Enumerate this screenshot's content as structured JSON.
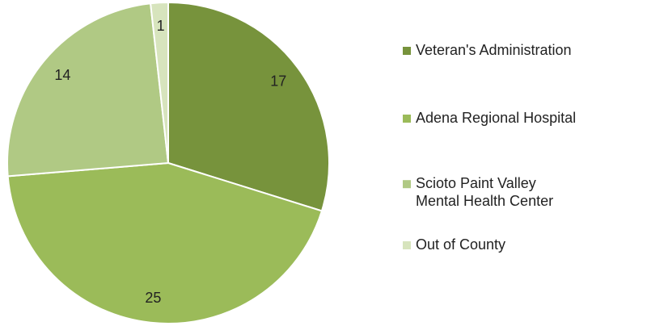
{
  "chart_data": {
    "type": "pie",
    "categories": [
      "Veteran's Administration",
      "Adena Regional Hospital",
      "Scioto Paint Valley\nMental Health Center",
      "Out of County"
    ],
    "values": [
      17,
      25,
      14,
      1
    ],
    "colors": [
      "#77933c",
      "#9bbb59",
      "#b0c984",
      "#d7e4bd"
    ],
    "legend": "right"
  }
}
